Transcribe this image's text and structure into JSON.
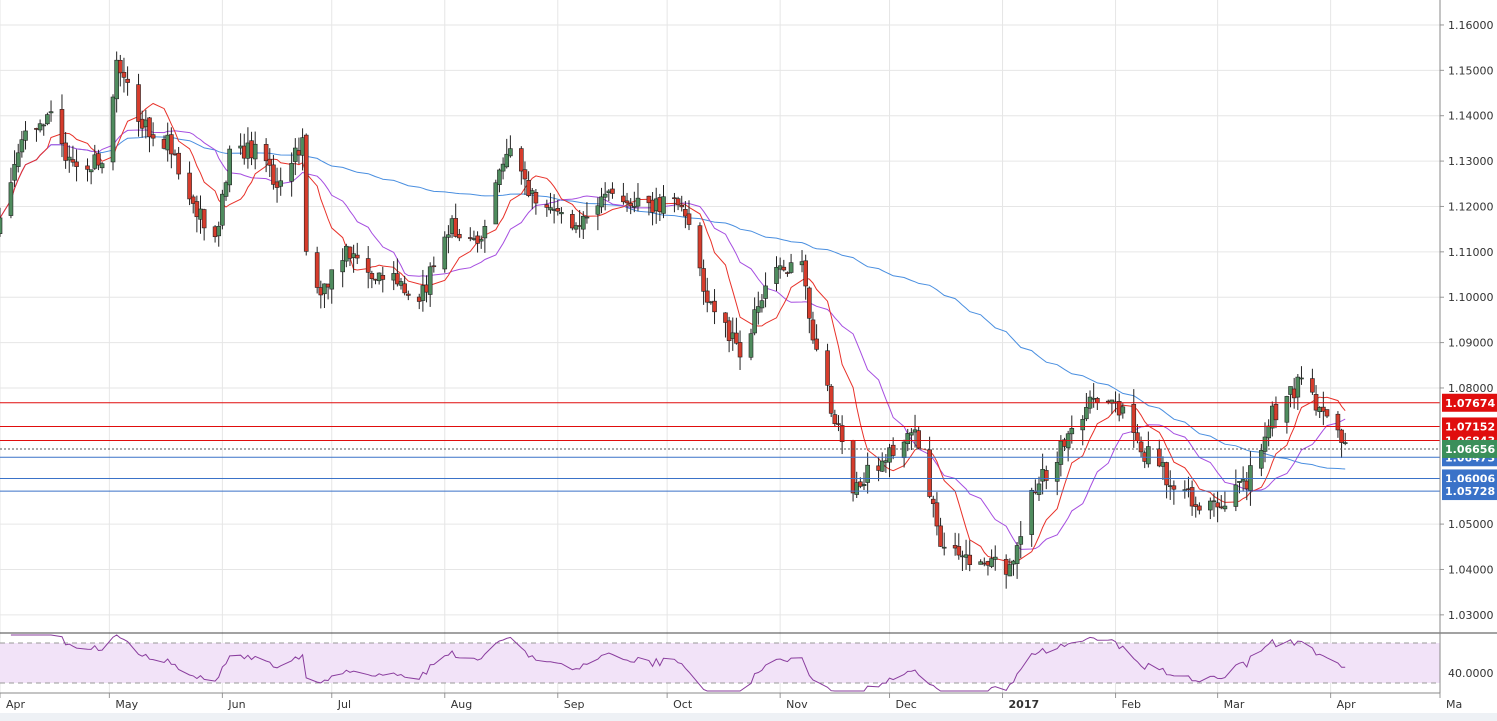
{
  "chart_data": {
    "type": "candlestick",
    "title": "",
    "instrument": "",
    "timeframe": "daily",
    "x_tick_labels": [
      "Apr",
      "May",
      "Jun",
      "Jul",
      "Aug",
      "Sep",
      "Oct",
      "Nov",
      "Dec",
      "2017",
      "Feb",
      "Mar",
      "Apr",
      "Ma"
    ],
    "y_tick_labels": [
      "1.16000",
      "1.15000",
      "1.14000",
      "1.13000",
      "1.12000",
      "1.11000",
      "1.10000",
      "1.09000",
      "1.08000",
      "1.05000",
      "1.04000",
      "1.03000"
    ],
    "ylim": [
      1.026,
      1.1655
    ],
    "grid": true,
    "current_price": "1.06656",
    "resistance_levels": [
      "1.07674",
      "1.07152",
      "1.06843"
    ],
    "support_levels": [
      "1.06473",
      "1.06006",
      "1.05728"
    ],
    "close_path": [
      {
        "d": "2016-04-01",
        "c": 1.116
      },
      {
        "d": "2016-04-08",
        "c": 1.138
      },
      {
        "d": "2016-04-15",
        "c": 1.139
      },
      {
        "d": "2016-04-22",
        "c": 1.127
      },
      {
        "d": "2016-04-29",
        "c": 1.13
      },
      {
        "d": "2016-05-03",
        "c": 1.15
      },
      {
        "d": "2016-05-10",
        "c": 1.139
      },
      {
        "d": "2016-05-17",
        "c": 1.134
      },
      {
        "d": "2016-05-24",
        "c": 1.12
      },
      {
        "d": "2016-05-31",
        "c": 1.114
      },
      {
        "d": "2016-06-03",
        "c": 1.134
      },
      {
        "d": "2016-06-10",
        "c": 1.132
      },
      {
        "d": "2016-06-17",
        "c": 1.124
      },
      {
        "d": "2016-06-23",
        "c": 1.135
      },
      {
        "d": "2016-06-24",
        "c": 1.111
      },
      {
        "d": "2016-06-27",
        "c": 1.1
      },
      {
        "d": "2016-07-05",
        "c": 1.109
      },
      {
        "d": "2016-07-15",
        "c": 1.105
      },
      {
        "d": "2016-07-25",
        "c": 1.099
      },
      {
        "d": "2016-08-02",
        "c": 1.116
      },
      {
        "d": "2016-08-10",
        "c": 1.111
      },
      {
        "d": "2016-08-18",
        "c": 1.132
      },
      {
        "d": "2016-08-26",
        "c": 1.12
      },
      {
        "d": "2016-09-05",
        "c": 1.116
      },
      {
        "d": "2016-09-15",
        "c": 1.124
      },
      {
        "d": "2016-09-25",
        "c": 1.12
      },
      {
        "d": "2016-10-05",
        "c": 1.12
      },
      {
        "d": "2016-10-12",
        "c": 1.1
      },
      {
        "d": "2016-10-21",
        "c": 1.088
      },
      {
        "d": "2016-10-31",
        "c": 1.106
      },
      {
        "d": "2016-11-07",
        "c": 1.107
      },
      {
        "d": "2016-11-10",
        "c": 1.09
      },
      {
        "d": "2016-11-21",
        "c": 1.059
      },
      {
        "d": "2016-12-02",
        "c": 1.066
      },
      {
        "d": "2016-12-08",
        "c": 1.073
      },
      {
        "d": "2016-12-15",
        "c": 1.045
      },
      {
        "d": "2016-12-22",
        "c": 1.042
      },
      {
        "d": "2017-01-03",
        "c": 1.04
      },
      {
        "d": "2017-01-10",
        "c": 1.058
      },
      {
        "d": "2017-01-24",
        "c": 1.076
      },
      {
        "d": "2017-02-02",
        "c": 1.075
      },
      {
        "d": "2017-02-09",
        "c": 1.066
      },
      {
        "d": "2017-02-20",
        "c": 1.056
      },
      {
        "d": "2017-03-01",
        "c": 1.054
      },
      {
        "d": "2017-03-09",
        "c": 1.059
      },
      {
        "d": "2017-03-16",
        "c": 1.074
      },
      {
        "d": "2017-03-24",
        "c": 1.082
      },
      {
        "d": "2017-03-28",
        "c": 1.076
      },
      {
        "d": "2017-04-05",
        "c": 1.0666
      }
    ],
    "rsi": {
      "y_tick_labels": [
        "40.0000"
      ],
      "levels": [
        70,
        30
      ],
      "ylim": [
        20,
        80
      ]
    }
  },
  "colors": {
    "up_candle": "#4f8c5e",
    "down_candle": "#d63c2c",
    "sma_red": "#e8322a",
    "sma_purple": "#a64ee0",
    "sma_blue": "#4a8fe0",
    "resistance": "#e00d0d",
    "support": "#3a72c8",
    "current": "#3b8f5b",
    "rsi_fill": "#f2e3f8",
    "rsi_line": "#8a3d9e",
    "grid": "#e6e6e6"
  }
}
